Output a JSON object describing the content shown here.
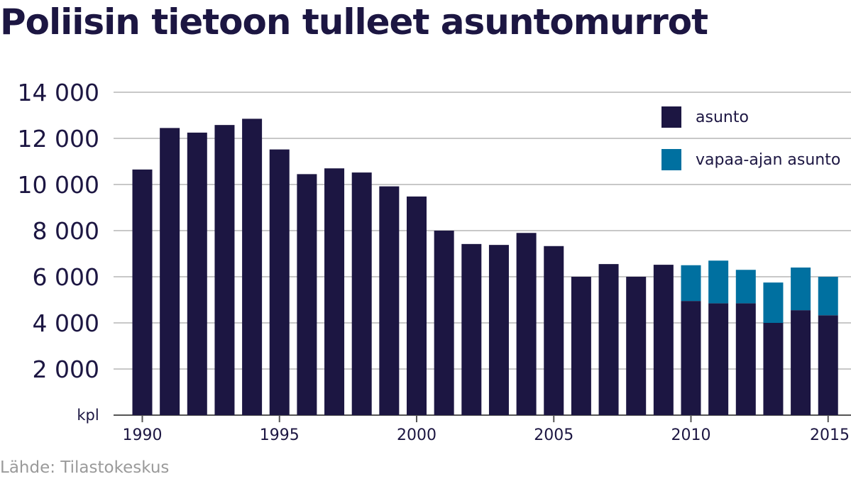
{
  "chart_data": {
    "type": "bar",
    "stacked": true,
    "title": "Poliisin tietoon tulleet asuntomurrot",
    "ylabel": "kpl",
    "ylim": [
      0,
      14000
    ],
    "yticks": [
      2000,
      4000,
      6000,
      8000,
      10000,
      12000,
      14000
    ],
    "ytick_labels": [
      "2 000",
      "4 000",
      "6 000",
      "8 000",
      "10 000",
      "12 000",
      "14 000"
    ],
    "x": [
      1990,
      1991,
      1992,
      1993,
      1994,
      1995,
      1996,
      1997,
      1998,
      1999,
      2000,
      2001,
      2002,
      2003,
      2004,
      2005,
      2006,
      2007,
      2008,
      2009,
      2010,
      2011,
      2012,
      2013,
      2014,
      2015
    ],
    "xtick_labels": [
      "1990",
      "1995",
      "2000",
      "2005",
      "2010",
      "2015"
    ],
    "grid": true,
    "legend_position": "top-right",
    "series": [
      {
        "name": "asunto",
        "color": "#1c1642",
        "values": [
          10650,
          12450,
          12250,
          12580,
          12850,
          11520,
          10450,
          10700,
          10520,
          9920,
          9480,
          8000,
          7420,
          7380,
          7900,
          7330,
          6000,
          6550,
          6000,
          6520,
          4950,
          4850,
          4850,
          4000,
          4550,
          4330
        ]
      },
      {
        "name": "vapaa-ajan asunto",
        "color": "#0070a0",
        "values": [
          0,
          0,
          0,
          0,
          0,
          0,
          0,
          0,
          0,
          0,
          0,
          0,
          0,
          0,
          0,
          0,
          0,
          0,
          0,
          0,
          1550,
          1850,
          1450,
          1750,
          1850,
          1670
        ]
      }
    ]
  },
  "source": "Lähde: Tilastokeskus"
}
